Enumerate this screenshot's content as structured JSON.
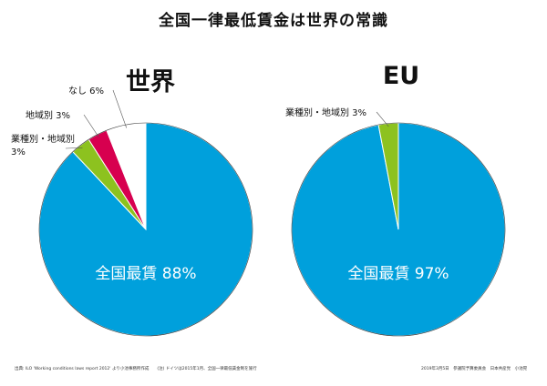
{
  "title": "全国一律最低賃金は世界の常識",
  "chart_data": [
    {
      "type": "pie",
      "title": "世界",
      "slices": [
        {
          "label": "全国最賃",
          "value": 88,
          "value_text": "88%",
          "color": "#00a0dc"
        },
        {
          "label": "業種別・地域別",
          "value": 3,
          "value_text": "3%",
          "color": "#8dc21f"
        },
        {
          "label": "地域別",
          "value": 3,
          "value_text": "3%",
          "color": "#d7004f"
        },
        {
          "label": "なし",
          "value": 6,
          "value_text": "6%",
          "color": "#ffffff"
        }
      ]
    },
    {
      "type": "pie",
      "title": "EU",
      "slices": [
        {
          "label": "全国最賃",
          "value": 97,
          "value_text": "97%",
          "color": "#00a0dc"
        },
        {
          "label": "業種別・地域別",
          "value": 3,
          "value_text": "3%",
          "color": "#8dc21f"
        }
      ]
    }
  ],
  "footer": {
    "left": "出典: ILO 'Working conditions laws report 2012' より小池事務所作成　　(注) ドイツは2015年1月、全国一律最低賃金制を施行",
    "right": "2019年3月5日　参議院予算委員会　日本共産党　小池晃"
  }
}
